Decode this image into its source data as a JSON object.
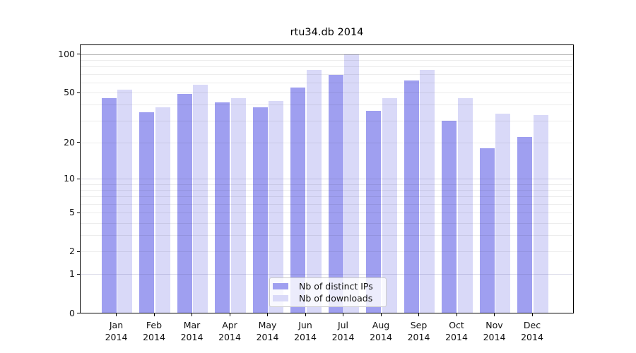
{
  "colors": {
    "distinct_ips": "#9f9ff0",
    "downloads": "#d9d9f8",
    "axis": "#000000",
    "text": "#111111"
  },
  "chart_data": {
    "type": "bar",
    "title": "rtu34.db 2014",
    "categories": [
      "Jan",
      "Feb",
      "Mar",
      "Apr",
      "May",
      "Jun",
      "Jul",
      "Aug",
      "Sep",
      "Oct",
      "Nov",
      "Dec"
    ],
    "category_year": "2014",
    "series": [
      {
        "name": "Nb of distinct IPs",
        "values": [
          45,
          35,
          49,
          42,
          38,
          55,
          69,
          36,
          62,
          30,
          18,
          22
        ]
      },
      {
        "name": "Nb of downloads",
        "values": [
          53,
          38,
          58,
          45,
          43,
          75,
          100,
          45,
          75,
          45,
          34,
          33
        ]
      }
    ],
    "xlabel": "",
    "ylabel": "",
    "yscale": "log1p",
    "ylim": [
      0,
      120
    ],
    "yticks": [
      0,
      1,
      2,
      5,
      10,
      20,
      50,
      100
    ],
    "yticks_minor": [
      2,
      3,
      4,
      5,
      6,
      7,
      8,
      9,
      20,
      30,
      40,
      50,
      60,
      70,
      80,
      90
    ],
    "grid": true,
    "legend_position": "lower center"
  }
}
